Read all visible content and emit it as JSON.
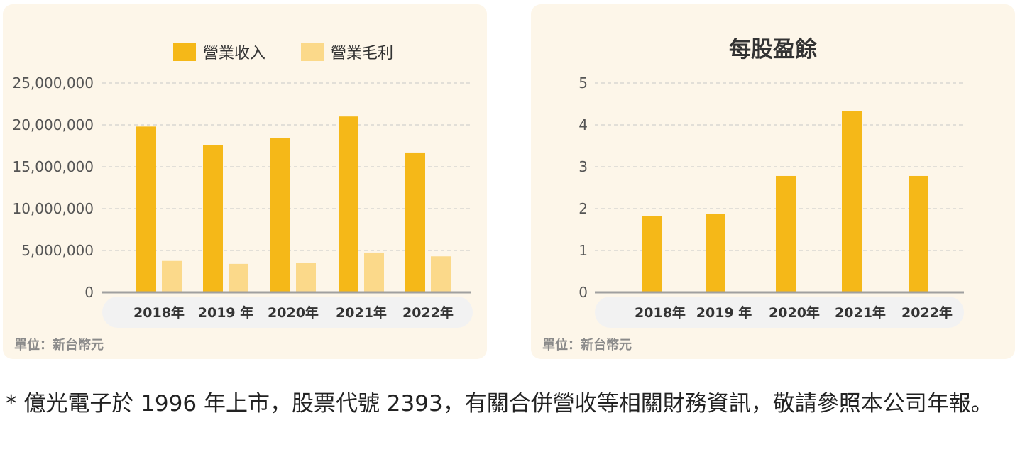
{
  "colors": {
    "revenue": "#f5b818",
    "gross_profit": "#fbd98a",
    "eps": "#f5b818",
    "axis": "#a0a0a0",
    "grid": "#c8c8c8",
    "category_strip": "#f2f2f2",
    "tick_text": "#555555",
    "category_text": "#333333"
  },
  "chart_data": [
    {
      "type": "bar",
      "title": "",
      "unit_note": "單位：新台幣元",
      "categories": [
        "2018年",
        "2019 年",
        "2020年",
        "2021年",
        "2022年"
      ],
      "series": [
        {
          "name": "營業收入",
          "values": [
            19800000,
            17600000,
            18400000,
            21000000,
            16700000
          ]
        },
        {
          "name": "營業毛利",
          "values": [
            3750000,
            3400000,
            3550000,
            4750000,
            4300000
          ]
        }
      ],
      "yticks": [
        "0",
        "5,000,000",
        "10,000,000",
        "15,000,000",
        "20,000,000",
        "25,000,000"
      ],
      "ylim": [
        0,
        25000000
      ],
      "grid": true,
      "legend": "top-center"
    },
    {
      "type": "bar",
      "title": "每股盈餘",
      "unit_note": "單位：新台幣元",
      "categories": [
        "2018年",
        "2019 年",
        "2020年",
        "2021年",
        "2022年"
      ],
      "series": [
        {
          "name": "",
          "values": [
            1.83,
            1.88,
            2.78,
            4.33,
            2.78
          ]
        }
      ],
      "yticks": [
        "0",
        "1",
        "2",
        "3",
        "4",
        "5"
      ],
      "ylim": [
        0,
        5
      ],
      "grid": true,
      "legend": "none"
    }
  ],
  "footnote": "* 億光電子於 1996 年上市，股票代號 2393，有關合併營收等相關財務資訊，敬請參照本公司年報。"
}
